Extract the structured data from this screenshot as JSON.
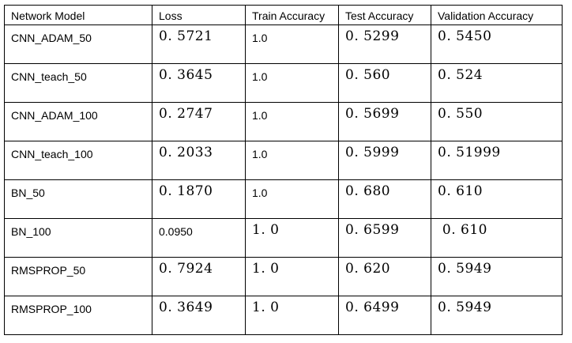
{
  "headers": [
    "Network Model",
    "Loss",
    "Train Accuracy",
    "Test Accuracy",
    "Validation Accuracy"
  ],
  "rows": [
    {
      "model": "CNN_ADAM_50",
      "loss": "0. 5721",
      "train": "1.0",
      "test": "0. 5299",
      "val": "0. 5450"
    },
    {
      "model": "CNN_teach_50",
      "loss": "0. 3645",
      "train": "1.0",
      "test": "0. 560",
      "val": "0. 524"
    },
    {
      "model": "CNN_ADAM_100",
      "loss": "0. 2747",
      "train": "1.0",
      "test": "0. 5699",
      "val": "0. 550"
    },
    {
      "model": "CNN_teach_100",
      "loss": "0. 2033",
      "train": "1.0",
      "test": "0. 5999",
      "val": "0. 51999"
    },
    {
      "model": "BN_50",
      "loss": "0. 1870",
      "train": "1.0",
      "test": "0. 680",
      "val": "0. 610"
    },
    {
      "model": "BN_100",
      "loss": "0.0950",
      "train": "1. 0",
      "test": "0. 6599",
      "val": " 0. 610"
    },
    {
      "model": "RMSPROP_50",
      "loss": "0. 7924",
      "train": "1. 0",
      "test": "0. 620",
      "val": "0. 5949"
    },
    {
      "model": "RMSPROP_100",
      "loss": "0. 3649",
      "train": "1. 0",
      "test": "0. 6499",
      "val": "0. 5949"
    }
  ]
}
